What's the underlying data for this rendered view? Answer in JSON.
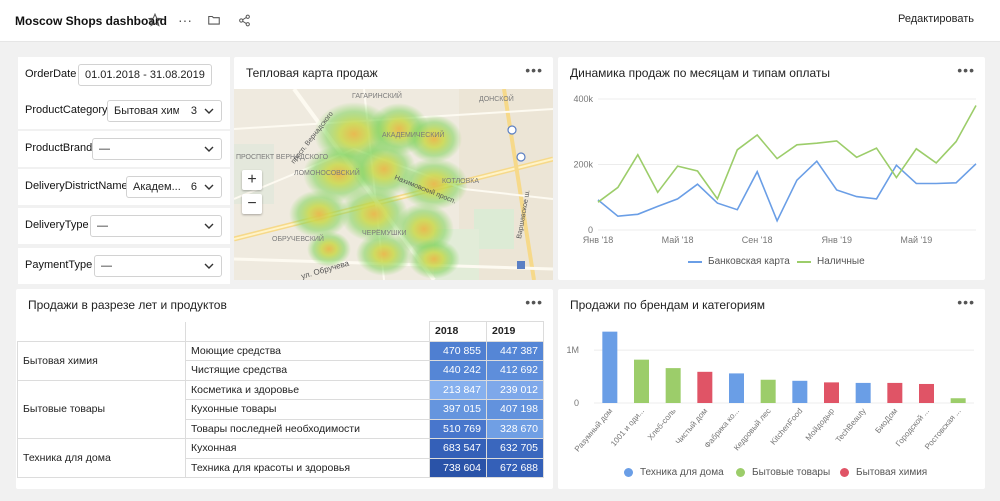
{
  "header": {
    "title": "Moscow Shops dashboard",
    "edit_label": "Редактировать"
  },
  "filters": [
    {
      "label": "OrderDate",
      "value": "01.01.2018 - 31.08.2019",
      "count": ""
    },
    {
      "label": "ProductCategory",
      "value": "Бытовая хим...",
      "count": "3"
    },
    {
      "label": "ProductBrand",
      "value": "—",
      "count": ""
    },
    {
      "label": "DeliveryDistrictName",
      "value": "Академ...",
      "count": "6"
    },
    {
      "label": "DeliveryType",
      "value": "—",
      "count": ""
    },
    {
      "label": "PaymentType",
      "value": "—",
      "count": ""
    }
  ],
  "heatmap": {
    "title": "Тепловая карта продаж",
    "labels": [
      "ГАГАРИНСКИЙ",
      "АКАДЕМИЧЕСКИЙ",
      "ДОНСКОЙ",
      "ПРОСПЕКТ ВЕРНАДСКОГО",
      "ЛОМОНОСОВСКИЙ",
      "КОТЛОВКА",
      "ОБРУЧЕВСКИЙ",
      "ЧЕРЁМУШКИ",
      "Нахимовский просп.",
      "просп. Вернадского",
      "ул. Обручева",
      "Варшавское ш."
    ]
  },
  "line_chart": {
    "title": "Динамика продаж по месяцам и типам оплаты"
  },
  "table": {
    "title": "Продажи в разрезе лет и продуктов",
    "years": [
      "2018",
      "2019"
    ],
    "groups": [
      {
        "category": "Бытовая химия",
        "rows": [
          {
            "product": "Моющие средства",
            "v2018": "470 855",
            "v2019": "447 387",
            "c2018": "#4f7fd1",
            "c2019": "#5586d6"
          },
          {
            "product": "Чистящие средства",
            "v2018": "440 242",
            "v2019": "412 692",
            "c2018": "#5586d6",
            "c2019": "#5e8edb"
          }
        ]
      },
      {
        "category": "Бытовые товары",
        "rows": [
          {
            "product": "Косметика и здоровье",
            "v2018": "213 847",
            "v2019": "239 012",
            "c2018": "#86b0ee",
            "c2019": "#7ea8ea"
          },
          {
            "product": "Кухонные товары",
            "v2018": "397 015",
            "v2019": "407 198",
            "c2018": "#6595de",
            "c2019": "#6292dd"
          },
          {
            "product": "Товары последней необходимости",
            "v2018": "510 769",
            "v2019": "328 670",
            "c2018": "#4876cc",
            "c2019": "#709fe4"
          }
        ]
      },
      {
        "category": "Техника для дома",
        "rows": [
          {
            "product": "Кухонная",
            "v2018": "683 547",
            "v2019": "632 705",
            "c2018": "#3460b8",
            "c2019": "#3a67be"
          },
          {
            "product": "Техника для красоты и здоровья",
            "v2018": "738 604",
            "v2019": "672 688",
            "c2018": "#2a53a8",
            "c2019": "#3460b8"
          }
        ]
      }
    ]
  },
  "bar_chart_card": {
    "title": "Продажи по брендам и категориям"
  },
  "colors": {
    "blue": "#6a9ee6",
    "green": "#9ccd6a",
    "red": "#e05466"
  },
  "chart_data": [
    {
      "type": "line",
      "title": "Динамика продаж по месяцам и типам оплаты",
      "x": [
        "2018-01",
        "2018-02",
        "2018-03",
        "2018-04",
        "2018-05",
        "2018-06",
        "2018-07",
        "2018-08",
        "2018-09",
        "2018-10",
        "2018-11",
        "2018-12",
        "2019-01",
        "2019-02",
        "2019-03",
        "2019-04",
        "2019-05",
        "2019-06",
        "2019-07",
        "2019-08"
      ],
      "x_tick_labels": [
        {
          "month": "2018-01",
          "label": "Янв '18"
        },
        {
          "month": "2018-05",
          "label": "Май '18"
        },
        {
          "month": "2018-09",
          "label": "Сен '18"
        },
        {
          "month": "2019-01",
          "label": "Янв '19"
        },
        {
          "month": "2019-05",
          "label": "Май '19"
        }
      ],
      "y_ticks": [
        "0",
        "200k",
        "400k"
      ],
      "ylim": [
        0,
        400000
      ],
      "series": [
        {
          "name": "Банковская карта",
          "color": "#6a9ee6",
          "values": [
            92000,
            42000,
            48000,
            72000,
            95000,
            140000,
            82000,
            62000,
            178000,
            28000,
            152000,
            210000,
            122000,
            102000,
            95000,
            198000,
            142000,
            142000,
            144000,
            202000
          ]
        },
        {
          "name": "Наличные",
          "color": "#9ccd6a",
          "values": [
            85000,
            130000,
            230000,
            115000,
            195000,
            180000,
            95000,
            245000,
            290000,
            218000,
            260000,
            265000,
            272000,
            222000,
            250000,
            160000,
            248000,
            205000,
            270000,
            380000
          ]
        }
      ],
      "legend": "bottom"
    },
    {
      "type": "bar",
      "title": "Продажи по брендам и категориям",
      "categories": [
        "Разумный дом",
        "1001 и оди...",
        "Хлеб-соль",
        "Чистый дом",
        "Фабрика ко...",
        "Кедровый лес",
        "KitchenFood",
        "Мойдодыр",
        "TechBeauty",
        "БиоДом",
        "Городской ...",
        "Ростовская ..."
      ],
      "values": [
        1350000,
        820000,
        660000,
        590000,
        560000,
        440000,
        420000,
        390000,
        380000,
        380000,
        360000,
        90000
      ],
      "series_of_bar": [
        "Техника для дома",
        "Бытовые товары",
        "Бытовые товары",
        "Бытовая химия",
        "Техника для дома",
        "Бытовые товары",
        "Техника для дома",
        "Бытовая химия",
        "Техника для дома",
        "Бытовая химия",
        "Бытовая химия",
        "Бытовые товары"
      ],
      "series": [
        {
          "name": "Техника для дома",
          "color": "#6a9ee6"
        },
        {
          "name": "Бытовые товары",
          "color": "#9ccd6a"
        },
        {
          "name": "Бытовая химия",
          "color": "#e05466"
        }
      ],
      "y_ticks": [
        "0",
        "1M"
      ],
      "ylim": [
        0,
        1400000
      ],
      "legend": "bottom"
    }
  ]
}
